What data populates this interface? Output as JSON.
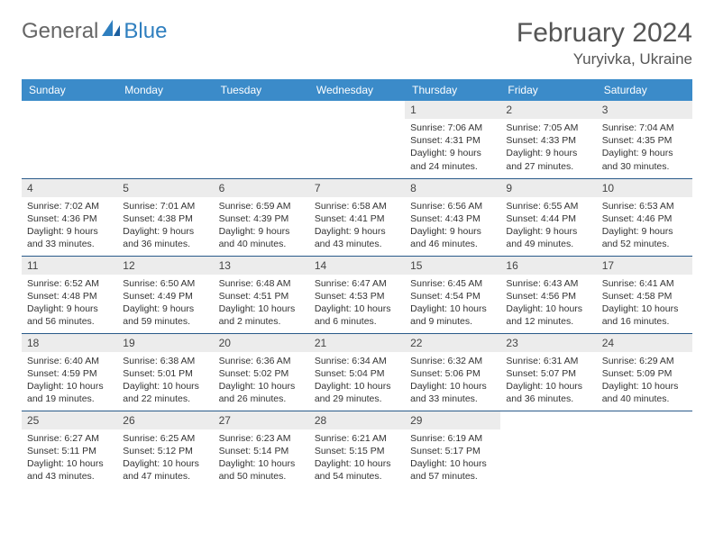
{
  "brand": {
    "part1": "General",
    "part2": "Blue"
  },
  "title": "February 2024",
  "location": "Yuryivka, Ukraine",
  "colors": {
    "header_bg": "#3b8bc9",
    "header_fg": "#ffffff",
    "row_border": "#2a5b8a",
    "daynum_bg": "#ececec",
    "text": "#333333",
    "title": "#555555"
  },
  "weekdays": [
    "Sunday",
    "Monday",
    "Tuesday",
    "Wednesday",
    "Thursday",
    "Friday",
    "Saturday"
  ],
  "weeks": [
    [
      null,
      null,
      null,
      null,
      {
        "n": "1",
        "sr": "Sunrise: 7:06 AM",
        "ss": "Sunset: 4:31 PM",
        "dl": "Daylight: 9 hours and 24 minutes."
      },
      {
        "n": "2",
        "sr": "Sunrise: 7:05 AM",
        "ss": "Sunset: 4:33 PM",
        "dl": "Daylight: 9 hours and 27 minutes."
      },
      {
        "n": "3",
        "sr": "Sunrise: 7:04 AM",
        "ss": "Sunset: 4:35 PM",
        "dl": "Daylight: 9 hours and 30 minutes."
      }
    ],
    [
      {
        "n": "4",
        "sr": "Sunrise: 7:02 AM",
        "ss": "Sunset: 4:36 PM",
        "dl": "Daylight: 9 hours and 33 minutes."
      },
      {
        "n": "5",
        "sr": "Sunrise: 7:01 AM",
        "ss": "Sunset: 4:38 PM",
        "dl": "Daylight: 9 hours and 36 minutes."
      },
      {
        "n": "6",
        "sr": "Sunrise: 6:59 AM",
        "ss": "Sunset: 4:39 PM",
        "dl": "Daylight: 9 hours and 40 minutes."
      },
      {
        "n": "7",
        "sr": "Sunrise: 6:58 AM",
        "ss": "Sunset: 4:41 PM",
        "dl": "Daylight: 9 hours and 43 minutes."
      },
      {
        "n": "8",
        "sr": "Sunrise: 6:56 AM",
        "ss": "Sunset: 4:43 PM",
        "dl": "Daylight: 9 hours and 46 minutes."
      },
      {
        "n": "9",
        "sr": "Sunrise: 6:55 AM",
        "ss": "Sunset: 4:44 PM",
        "dl": "Daylight: 9 hours and 49 minutes."
      },
      {
        "n": "10",
        "sr": "Sunrise: 6:53 AM",
        "ss": "Sunset: 4:46 PM",
        "dl": "Daylight: 9 hours and 52 minutes."
      }
    ],
    [
      {
        "n": "11",
        "sr": "Sunrise: 6:52 AM",
        "ss": "Sunset: 4:48 PM",
        "dl": "Daylight: 9 hours and 56 minutes."
      },
      {
        "n": "12",
        "sr": "Sunrise: 6:50 AM",
        "ss": "Sunset: 4:49 PM",
        "dl": "Daylight: 9 hours and 59 minutes."
      },
      {
        "n": "13",
        "sr": "Sunrise: 6:48 AM",
        "ss": "Sunset: 4:51 PM",
        "dl": "Daylight: 10 hours and 2 minutes."
      },
      {
        "n": "14",
        "sr": "Sunrise: 6:47 AM",
        "ss": "Sunset: 4:53 PM",
        "dl": "Daylight: 10 hours and 6 minutes."
      },
      {
        "n": "15",
        "sr": "Sunrise: 6:45 AM",
        "ss": "Sunset: 4:54 PM",
        "dl": "Daylight: 10 hours and 9 minutes."
      },
      {
        "n": "16",
        "sr": "Sunrise: 6:43 AM",
        "ss": "Sunset: 4:56 PM",
        "dl": "Daylight: 10 hours and 12 minutes."
      },
      {
        "n": "17",
        "sr": "Sunrise: 6:41 AM",
        "ss": "Sunset: 4:58 PM",
        "dl": "Daylight: 10 hours and 16 minutes."
      }
    ],
    [
      {
        "n": "18",
        "sr": "Sunrise: 6:40 AM",
        "ss": "Sunset: 4:59 PM",
        "dl": "Daylight: 10 hours and 19 minutes."
      },
      {
        "n": "19",
        "sr": "Sunrise: 6:38 AM",
        "ss": "Sunset: 5:01 PM",
        "dl": "Daylight: 10 hours and 22 minutes."
      },
      {
        "n": "20",
        "sr": "Sunrise: 6:36 AM",
        "ss": "Sunset: 5:02 PM",
        "dl": "Daylight: 10 hours and 26 minutes."
      },
      {
        "n": "21",
        "sr": "Sunrise: 6:34 AM",
        "ss": "Sunset: 5:04 PM",
        "dl": "Daylight: 10 hours and 29 minutes."
      },
      {
        "n": "22",
        "sr": "Sunrise: 6:32 AM",
        "ss": "Sunset: 5:06 PM",
        "dl": "Daylight: 10 hours and 33 minutes."
      },
      {
        "n": "23",
        "sr": "Sunrise: 6:31 AM",
        "ss": "Sunset: 5:07 PM",
        "dl": "Daylight: 10 hours and 36 minutes."
      },
      {
        "n": "24",
        "sr": "Sunrise: 6:29 AM",
        "ss": "Sunset: 5:09 PM",
        "dl": "Daylight: 10 hours and 40 minutes."
      }
    ],
    [
      {
        "n": "25",
        "sr": "Sunrise: 6:27 AM",
        "ss": "Sunset: 5:11 PM",
        "dl": "Daylight: 10 hours and 43 minutes."
      },
      {
        "n": "26",
        "sr": "Sunrise: 6:25 AM",
        "ss": "Sunset: 5:12 PM",
        "dl": "Daylight: 10 hours and 47 minutes."
      },
      {
        "n": "27",
        "sr": "Sunrise: 6:23 AM",
        "ss": "Sunset: 5:14 PM",
        "dl": "Daylight: 10 hours and 50 minutes."
      },
      {
        "n": "28",
        "sr": "Sunrise: 6:21 AM",
        "ss": "Sunset: 5:15 PM",
        "dl": "Daylight: 10 hours and 54 minutes."
      },
      {
        "n": "29",
        "sr": "Sunrise: 6:19 AM",
        "ss": "Sunset: 5:17 PM",
        "dl": "Daylight: 10 hours and 57 minutes."
      },
      null,
      null
    ]
  ]
}
